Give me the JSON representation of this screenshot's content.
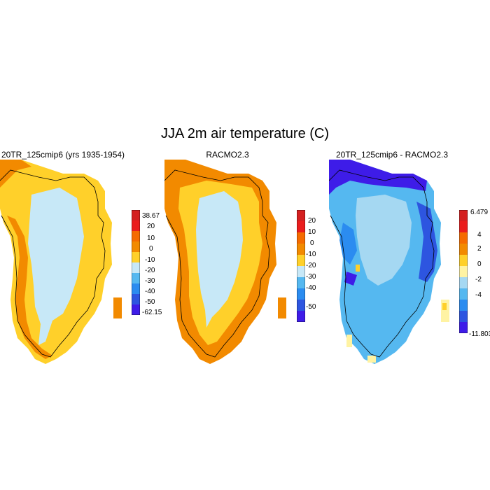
{
  "figure": {
    "title": "JJA 2m air temperature (C)"
  },
  "panels": [
    {
      "id": "model",
      "title": "20TR_125cmip6 (yrs 1935-1954)",
      "colorbar": {
        "labels": [
          "38.67",
          "20",
          "10",
          "0",
          "-10",
          "-20",
          "-30",
          "-40",
          "-50",
          "-62.15"
        ],
        "colors": [
          "#d42020",
          "#ea1d1d",
          "#f56b00",
          "#f28a00",
          "#ffd02a",
          "#c7e8f7",
          "#55b8f0",
          "#2b8cf0",
          "#2d55e0",
          "#3e1ce8"
        ]
      }
    },
    {
      "id": "racmo",
      "title": "RACMO2.3",
      "colorbar": {
        "labels": [
          "20",
          "10",
          "0",
          "-10",
          "-20",
          "-30",
          "-40",
          "-50"
        ],
        "colors": [
          "#d42020",
          "#ea1d1d",
          "#f56b00",
          "#f28a00",
          "#ffd02a",
          "#c7e8f7",
          "#55b8f0",
          "#2b8cf0",
          "#2d55e0",
          "#3e1ce8"
        ]
      }
    },
    {
      "id": "diff",
      "title": "20TR_125cmip6 - RACMO2.3",
      "colorbar": {
        "labels": [
          "6.479",
          "4",
          "2",
          "0",
          "-2",
          "-4",
          "-11.803"
        ],
        "colors": [
          "#d42020",
          "#ea1d1d",
          "#f56b00",
          "#f28a00",
          "#ffd02a",
          "#fff3a3",
          "#a5d8f2",
          "#55b8f0",
          "#2b8cf0",
          "#2d55e0",
          "#3e1ce8"
        ]
      }
    }
  ]
}
